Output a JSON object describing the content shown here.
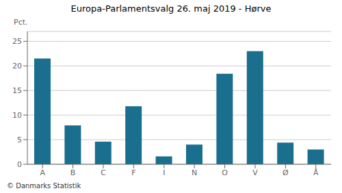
{
  "chart_data": {
    "type": "bar",
    "title": "Europa-Parlamentsvalg 26. maj 2019 - Hørve",
    "categories": [
      "A",
      "B",
      "C",
      "F",
      "I",
      "N",
      "O",
      "V",
      "Ø",
      "Å"
    ],
    "values": [
      21.5,
      7.9,
      4.6,
      11.8,
      1.6,
      4.0,
      18.4,
      23.0,
      4.4,
      3.0
    ],
    "color": "#1a6e8e",
    "ylabel": "Pct.",
    "ylim": [
      0,
      27
    ],
    "yticks": [
      0,
      5,
      10,
      15,
      20,
      25
    ],
    "grid": true,
    "annotations": [
      "© Danmarks Statistik"
    ]
  }
}
